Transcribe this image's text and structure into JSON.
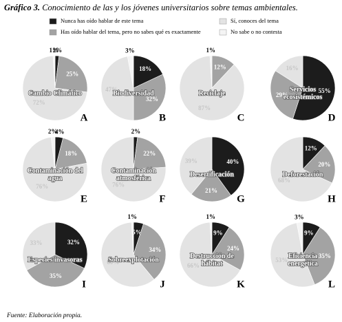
{
  "figure_label": "Gráfico 3.",
  "title": "Conocimiento de las y los jóvenes universitarios sobre temas ambientales.",
  "legend": {
    "categories": [
      "Nunca has oído hablar de este tema",
      "Has oído hablar del tema, pero no sabes qué es exactamente",
      "Sí, conoces del tema",
      "No sabe o no contesta"
    ],
    "colors": [
      "#1c1c1c",
      "#a3a3a3",
      "#e3e3e3",
      "#f4f4f4"
    ]
  },
  "source": "Fuente: Elaboración propia.",
  "chart_data": [
    {
      "type": "pie",
      "title": "Cambio Climático",
      "letter": "A",
      "values": [
        2,
        25,
        72,
        1
      ],
      "value_labels": [
        "2%",
        "25%",
        "72%",
        "1%"
      ]
    },
    {
      "type": "pie",
      "title": "Biodiversidad",
      "letter": "B",
      "values": [
        18,
        32,
        47,
        3
      ],
      "value_labels": [
        "18%",
        "32%",
        "47%",
        "3%"
      ]
    },
    {
      "type": "pie",
      "title": "Reciclaje",
      "letter": "C",
      "values": [
        0,
        12,
        87,
        1
      ],
      "value_labels": [
        null,
        "12%",
        "87%",
        "1%"
      ]
    },
    {
      "type": "pie",
      "title": "Servicios ecosistémicos",
      "letter": "D",
      "values": [
        55,
        29,
        16,
        0
      ],
      "value_labels": [
        "55%",
        "29%",
        "16%",
        null
      ]
    },
    {
      "type": "pie",
      "title": "Contaminación del agua",
      "letter": "E",
      "values": [
        4,
        18,
        76,
        2
      ],
      "value_labels": [
        "4%",
        "18%",
        "76%",
        "2%"
      ]
    },
    {
      "type": "pie",
      "title": "Contaminación atmosférica",
      "letter": "F",
      "values": [
        2,
        22,
        76,
        0
      ],
      "value_labels": [
        "2%",
        "22%",
        "76%",
        null
      ]
    },
    {
      "type": "pie",
      "title": "Desertificación",
      "letter": "G",
      "values": [
        40,
        21,
        39,
        0
      ],
      "value_labels": [
        "40%",
        "21%",
        "39%",
        null
      ]
    },
    {
      "type": "pie",
      "title": "Deforestación",
      "letter": "H",
      "values": [
        12,
        20,
        68,
        0
      ],
      "value_labels": [
        "12%",
        "20%",
        "68%",
        null
      ]
    },
    {
      "type": "pie",
      "title": "Especies invasoras",
      "letter": "I",
      "values": [
        32,
        35,
        33,
        0
      ],
      "value_labels": [
        "32%",
        "35%",
        "33%",
        null
      ]
    },
    {
      "type": "pie",
      "title": "Sobreexplotación",
      "letter": "J",
      "values": [
        5,
        34,
        60,
        1
      ],
      "value_labels": [
        "5%",
        "34%",
        "60%",
        "1%"
      ]
    },
    {
      "type": "pie",
      "title": "Destrucción de hábitat",
      "letter": "K",
      "values": [
        9,
        24,
        66,
        1
      ],
      "value_labels": [
        "9%",
        "24%",
        "66%",
        "1%"
      ]
    },
    {
      "type": "pie",
      "title": "Eficiencia energética",
      "letter": "L",
      "values": [
        9,
        35,
        53,
        3
      ],
      "value_labels": [
        "9%",
        "35%",
        "53%",
        "3%"
      ]
    }
  ]
}
